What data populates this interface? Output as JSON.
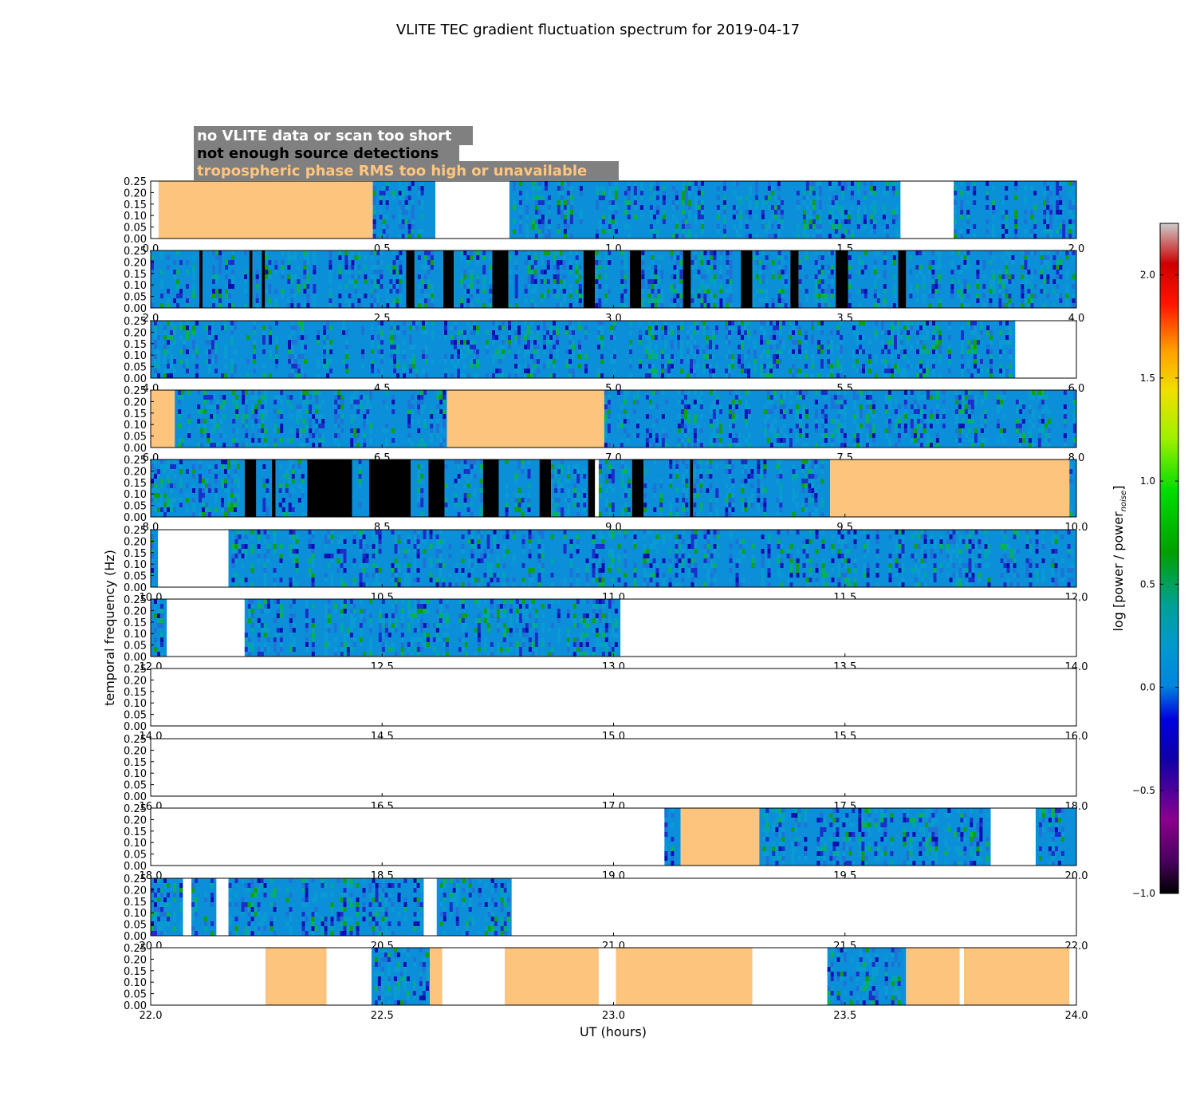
{
  "chart_data": {
    "type": "heatmap",
    "title": "VLITE TEC gradient fluctuation spectrum for 2019-04-17",
    "xlabel": "UT (hours)",
    "ylabel": "temporal frequency (Hz)",
    "colorbar_label": "log [power / power",
    "colorbar_label_subscript": "noise",
    "colorbar_label_end": "]",
    "colorbar_range": [
      -1.0,
      2.25
    ],
    "colorbar_ticks": [
      "−1.0",
      "−0.5",
      "0.0",
      "0.5",
      "1.0",
      "1.5",
      "2.0"
    ],
    "colorbar_tick_values": [
      -1.0,
      -0.5,
      0.0,
      0.5,
      1.0,
      1.5,
      2.0
    ],
    "ylim": [
      0,
      0.25
    ],
    "y_ticks": [
      "0.00",
      "0.05",
      "0.10",
      "0.15",
      "0.20",
      "0.25"
    ],
    "y_tick_values": [
      0.0,
      0.05,
      0.1,
      0.15,
      0.2,
      0.25
    ],
    "legend": [
      {
        "label": "no VLITE data or scan too short",
        "color": "#ffffff"
      },
      {
        "label": "not enough source detections",
        "color": "#000000"
      },
      {
        "label": "tropospheric phase RMS too high or unavailable",
        "color": "#ffc67f"
      }
    ],
    "colors": {
      "no_data": "#ffffff",
      "few_detections": "#000000",
      "tropo_flag": "#fdc47e",
      "legend_box": "#808080",
      "spectrum_base": "#0b8fd9"
    },
    "panels": [
      {
        "xlim": [
          0.0,
          2.0
        ],
        "x_ticks": [
          "0.0",
          "0.5",
          "1.0",
          "1.5",
          "2.0"
        ],
        "x_tick_values": [
          0.0,
          0.5,
          1.0,
          1.5,
          2.0
        ],
        "segments": [
          {
            "start": 0.0,
            "end": 0.017,
            "flag": "none"
          },
          {
            "start": 0.017,
            "end": 0.48,
            "flag": "tropo"
          },
          {
            "start": 0.48,
            "end": 0.615,
            "flag": "data"
          },
          {
            "start": 0.615,
            "end": 0.775,
            "flag": "none"
          },
          {
            "start": 0.775,
            "end": 1.62,
            "flag": "data"
          },
          {
            "start": 1.62,
            "end": 1.735,
            "flag": "none"
          },
          {
            "start": 1.735,
            "end": 2.0,
            "flag": "data"
          }
        ]
      },
      {
        "xlim": [
          2.0,
          4.0
        ],
        "x_ticks": [
          "2.0",
          "2.5",
          "3.0",
          "3.5",
          "4.0"
        ],
        "x_tick_values": [
          2.0,
          2.5,
          3.0,
          3.5,
          4.0
        ],
        "segments": [
          {
            "start": 2.0,
            "end": 2.105,
            "flag": "data"
          },
          {
            "start": 2.105,
            "end": 2.112,
            "flag": "few"
          },
          {
            "start": 2.112,
            "end": 2.213,
            "flag": "data"
          },
          {
            "start": 2.213,
            "end": 2.22,
            "flag": "few"
          },
          {
            "start": 2.22,
            "end": 2.24,
            "flag": "data"
          },
          {
            "start": 2.24,
            "end": 2.247,
            "flag": "few"
          },
          {
            "start": 2.247,
            "end": 2.552,
            "flag": "data"
          },
          {
            "start": 2.552,
            "end": 2.57,
            "flag": "few"
          },
          {
            "start": 2.57,
            "end": 2.632,
            "flag": "data"
          },
          {
            "start": 2.632,
            "end": 2.655,
            "flag": "few"
          },
          {
            "start": 2.655,
            "end": 2.738,
            "flag": "data"
          },
          {
            "start": 2.738,
            "end": 2.773,
            "flag": "few"
          },
          {
            "start": 2.773,
            "end": 2.935,
            "flag": "data"
          },
          {
            "start": 2.935,
            "end": 2.96,
            "flag": "few"
          },
          {
            "start": 2.96,
            "end": 3.035,
            "flag": "data"
          },
          {
            "start": 3.035,
            "end": 3.06,
            "flag": "few"
          },
          {
            "start": 3.06,
            "end": 3.15,
            "flag": "data"
          },
          {
            "start": 3.15,
            "end": 3.167,
            "flag": "few"
          },
          {
            "start": 3.167,
            "end": 3.275,
            "flag": "data"
          },
          {
            "start": 3.275,
            "end": 3.3,
            "flag": "few"
          },
          {
            "start": 3.3,
            "end": 3.382,
            "flag": "data"
          },
          {
            "start": 3.382,
            "end": 3.4,
            "flag": "few"
          },
          {
            "start": 3.4,
            "end": 3.48,
            "flag": "data"
          },
          {
            "start": 3.48,
            "end": 3.507,
            "flag": "few"
          },
          {
            "start": 3.507,
            "end": 3.615,
            "flag": "data"
          },
          {
            "start": 3.615,
            "end": 3.632,
            "flag": "few"
          },
          {
            "start": 3.632,
            "end": 4.0,
            "flag": "data"
          }
        ]
      },
      {
        "xlim": [
          4.0,
          6.0
        ],
        "x_ticks": [
          "4.0",
          "4.5",
          "5.0",
          "5.5",
          "6.0"
        ],
        "x_tick_values": [
          4.0,
          4.5,
          5.0,
          5.5,
          6.0
        ],
        "segments": [
          {
            "start": 4.0,
            "end": 5.868,
            "flag": "data"
          },
          {
            "start": 5.868,
            "end": 6.0,
            "flag": "none"
          }
        ]
      },
      {
        "xlim": [
          6.0,
          8.0
        ],
        "x_ticks": [
          "6.0",
          "6.5",
          "7.0",
          "7.5",
          "8.0"
        ],
        "x_tick_values": [
          6.0,
          6.5,
          7.0,
          7.5,
          8.0
        ],
        "segments": [
          {
            "start": 6.0,
            "end": 6.052,
            "flag": "tropo"
          },
          {
            "start": 6.052,
            "end": 6.64,
            "flag": "data"
          },
          {
            "start": 6.64,
            "end": 6.98,
            "flag": "tropo"
          },
          {
            "start": 6.98,
            "end": 8.0,
            "flag": "data"
          }
        ]
      },
      {
        "xlim": [
          8.0,
          10.0
        ],
        "x_ticks": [
          "8.0",
          "8.5",
          "9.0",
          "9.5",
          "10.0"
        ],
        "x_tick_values": [
          8.0,
          8.5,
          9.0,
          9.5,
          10.0
        ],
        "segments": [
          {
            "start": 8.0,
            "end": 8.203,
            "flag": "data"
          },
          {
            "start": 8.203,
            "end": 8.228,
            "flag": "few"
          },
          {
            "start": 8.228,
            "end": 8.262,
            "flag": "data"
          },
          {
            "start": 8.262,
            "end": 8.27,
            "flag": "few"
          },
          {
            "start": 8.27,
            "end": 8.338,
            "flag": "data"
          },
          {
            "start": 8.338,
            "end": 8.435,
            "flag": "few"
          },
          {
            "start": 8.435,
            "end": 8.472,
            "flag": "data"
          },
          {
            "start": 8.472,
            "end": 8.562,
            "flag": "few"
          },
          {
            "start": 8.562,
            "end": 8.6,
            "flag": "data"
          },
          {
            "start": 8.6,
            "end": 8.635,
            "flag": "few"
          },
          {
            "start": 8.635,
            "end": 8.718,
            "flag": "data"
          },
          {
            "start": 8.718,
            "end": 8.752,
            "flag": "few"
          },
          {
            "start": 8.752,
            "end": 8.84,
            "flag": "data"
          },
          {
            "start": 8.84,
            "end": 8.865,
            "flag": "few"
          },
          {
            "start": 8.865,
            "end": 8.945,
            "flag": "data"
          },
          {
            "start": 8.945,
            "end": 8.96,
            "flag": "few"
          },
          {
            "start": 8.96,
            "end": 8.968,
            "flag": "none"
          },
          {
            "start": 8.968,
            "end": 9.04,
            "flag": "data"
          },
          {
            "start": 9.04,
            "end": 9.065,
            "flag": "few"
          },
          {
            "start": 9.065,
            "end": 9.165,
            "flag": "data"
          },
          {
            "start": 9.165,
            "end": 9.172,
            "flag": "few"
          },
          {
            "start": 9.172,
            "end": 9.468,
            "flag": "data"
          },
          {
            "start": 9.468,
            "end": 9.985,
            "flag": "tropo"
          },
          {
            "start": 9.985,
            "end": 10.0,
            "flag": "data"
          }
        ]
      },
      {
        "xlim": [
          10.0,
          12.0
        ],
        "x_ticks": [
          "10.0",
          "10.5",
          "11.0",
          "11.5",
          "12.0"
        ],
        "x_tick_values": [
          10.0,
          10.5,
          11.0,
          11.5,
          12.0
        ],
        "segments": [
          {
            "start": 10.0,
            "end": 10.016,
            "flag": "data"
          },
          {
            "start": 10.016,
            "end": 10.168,
            "flag": "none"
          },
          {
            "start": 10.168,
            "end": 12.0,
            "flag": "data"
          }
        ]
      },
      {
        "xlim": [
          12.0,
          14.0
        ],
        "x_ticks": [
          "12.0",
          "12.5",
          "13.0",
          "13.5",
          "14.0"
        ],
        "x_tick_values": [
          12.0,
          12.5,
          13.0,
          13.5,
          14.0
        ],
        "segments": [
          {
            "start": 12.0,
            "end": 12.035,
            "flag": "data"
          },
          {
            "start": 12.035,
            "end": 12.203,
            "flag": "none"
          },
          {
            "start": 12.203,
            "end": 13.015,
            "flag": "data"
          },
          {
            "start": 13.015,
            "end": 14.0,
            "flag": "none"
          }
        ]
      },
      {
        "xlim": [
          14.0,
          16.0
        ],
        "x_ticks": [
          "14.0",
          "14.5",
          "15.0",
          "15.5",
          "16.0"
        ],
        "x_tick_values": [
          14.0,
          14.5,
          15.0,
          15.5,
          16.0
        ],
        "segments": [
          {
            "start": 14.0,
            "end": 16.0,
            "flag": "none"
          }
        ]
      },
      {
        "xlim": [
          16.0,
          18.0
        ],
        "x_ticks": [
          "16.0",
          "16.5",
          "17.0",
          "17.5",
          "18.0"
        ],
        "x_tick_values": [
          16.0,
          16.5,
          17.0,
          17.5,
          18.0
        ],
        "segments": [
          {
            "start": 16.0,
            "end": 18.0,
            "flag": "none"
          }
        ]
      },
      {
        "xlim": [
          18.0,
          20.0
        ],
        "x_ticks": [
          "18.0",
          "18.5",
          "19.0",
          "19.5",
          "20.0"
        ],
        "x_tick_values": [
          18.0,
          18.5,
          19.0,
          19.5,
          20.0
        ],
        "segments": [
          {
            "start": 18.0,
            "end": 19.11,
            "flag": "none"
          },
          {
            "start": 19.11,
            "end": 19.145,
            "flag": "data"
          },
          {
            "start": 19.145,
            "end": 19.315,
            "flag": "tropo"
          },
          {
            "start": 19.315,
            "end": 19.815,
            "flag": "data"
          },
          {
            "start": 19.815,
            "end": 19.912,
            "flag": "none"
          },
          {
            "start": 19.912,
            "end": 20.0,
            "flag": "data"
          }
        ]
      },
      {
        "xlim": [
          20.0,
          22.0
        ],
        "x_ticks": [
          "20.0",
          "20.5",
          "21.0",
          "21.5",
          "22.0"
        ],
        "x_tick_values": [
          20.0,
          20.5,
          21.0,
          21.5,
          22.0
        ],
        "segments": [
          {
            "start": 20.0,
            "end": 20.07,
            "flag": "data"
          },
          {
            "start": 20.07,
            "end": 20.088,
            "flag": "none"
          },
          {
            "start": 20.088,
            "end": 20.142,
            "flag": "data"
          },
          {
            "start": 20.142,
            "end": 20.168,
            "flag": "none"
          },
          {
            "start": 20.168,
            "end": 20.59,
            "flag": "data"
          },
          {
            "start": 20.59,
            "end": 20.618,
            "flag": "none"
          },
          {
            "start": 20.618,
            "end": 20.78,
            "flag": "data"
          },
          {
            "start": 20.78,
            "end": 22.0,
            "flag": "none"
          }
        ]
      },
      {
        "xlim": [
          22.0,
          24.0
        ],
        "x_ticks": [
          "22.0",
          "22.5",
          "23.0",
          "23.5",
          "24.0"
        ],
        "x_tick_values": [
          22.0,
          22.5,
          23.0,
          23.5,
          24.0
        ],
        "segments": [
          {
            "start": 22.0,
            "end": 22.248,
            "flag": "none"
          },
          {
            "start": 22.248,
            "end": 22.38,
            "flag": "tropo"
          },
          {
            "start": 22.38,
            "end": 22.477,
            "flag": "none"
          },
          {
            "start": 22.477,
            "end": 22.603,
            "flag": "data"
          },
          {
            "start": 22.603,
            "end": 22.63,
            "flag": "tropo"
          },
          {
            "start": 22.63,
            "end": 22.765,
            "flag": "none"
          },
          {
            "start": 22.765,
            "end": 22.968,
            "flag": "tropo"
          },
          {
            "start": 22.968,
            "end": 23.005,
            "flag": "none"
          },
          {
            "start": 23.005,
            "end": 23.3,
            "flag": "tropo"
          },
          {
            "start": 23.3,
            "end": 23.462,
            "flag": "none"
          },
          {
            "start": 23.462,
            "end": 23.632,
            "flag": "data"
          },
          {
            "start": 23.632,
            "end": 23.748,
            "flag": "tropo"
          },
          {
            "start": 23.748,
            "end": 23.757,
            "flag": "none"
          },
          {
            "start": 23.757,
            "end": 23.985,
            "flag": "tropo"
          },
          {
            "start": 23.985,
            "end": 24.0,
            "flag": "none"
          }
        ]
      }
    ]
  }
}
